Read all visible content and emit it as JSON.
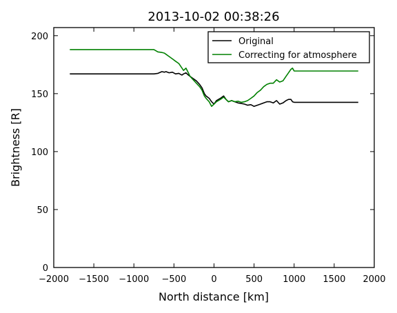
{
  "chart_data": {
    "type": "line",
    "title": "2013-10-02 00:38:26",
    "xlabel": "North distance [km]",
    "ylabel": "Brightness [R]",
    "xlim": [
      -2000,
      2000
    ],
    "ylim": [
      0,
      207
    ],
    "xticks": [
      -2000,
      -1500,
      -1000,
      -500,
      0,
      500,
      1000,
      1500,
      2000
    ],
    "yticks": [
      0,
      50,
      100,
      150,
      200
    ],
    "xtick_labels": [
      "−2000",
      "−1500",
      "−1000",
      "−500",
      "0",
      "500",
      "1000",
      "1500",
      "2000"
    ],
    "ytick_labels": [
      "0",
      "50",
      "100",
      "150",
      "200"
    ],
    "grid": false,
    "legend_position": "top-right",
    "series": [
      {
        "name": "Original",
        "color": "#000000",
        "x": [
          -1800,
          -750,
          -700,
          -650,
          -620,
          -600,
          -560,
          -520,
          -480,
          -440,
          -400,
          -380,
          -350,
          -320,
          -300,
          -260,
          -220,
          -180,
          -150,
          -120,
          -100,
          -60,
          -30,
          0,
          30,
          80,
          120,
          150,
          180,
          220,
          260,
          300,
          340,
          380,
          420,
          460,
          500,
          540,
          580,
          620,
          660,
          700,
          740,
          780,
          820,
          860,
          900,
          930,
          960,
          980,
          1000,
          1100,
          1300,
          1500,
          1800
        ],
        "y": [
          167,
          167,
          167.5,
          169,
          168.5,
          169,
          168,
          168.5,
          167,
          167.5,
          166,
          167,
          168,
          166,
          165,
          163,
          161,
          158,
          155,
          150,
          148,
          146,
          143,
          141,
          144,
          146,
          148,
          145,
          143,
          144,
          143,
          142,
          141.5,
          141,
          140,
          140.5,
          139,
          140,
          141,
          142,
          143,
          143,
          142,
          144,
          141,
          142,
          144,
          145,
          145,
          143,
          142.5,
          142.5,
          142.5,
          142.5,
          142.5
        ]
      },
      {
        "name": "Correcting for atmosphere",
        "color": "#008000",
        "x": [
          -1800,
          -750,
          -700,
          -650,
          -620,
          -600,
          -560,
          -520,
          -480,
          -440,
          -400,
          -380,
          -350,
          -320,
          -300,
          -260,
          -220,
          -180,
          -150,
          -120,
          -100,
          -60,
          -30,
          0,
          30,
          80,
          120,
          150,
          180,
          220,
          260,
          300,
          340,
          380,
          420,
          460,
          500,
          540,
          580,
          620,
          660,
          700,
          740,
          780,
          820,
          860,
          900,
          930,
          960,
          980,
          1000,
          1100,
          1300,
          1500,
          1800
        ],
        "y": [
          188,
          188,
          186,
          185.5,
          185,
          184,
          182,
          180,
          178,
          176,
          172,
          170,
          172,
          168,
          165,
          162,
          159,
          156,
          153,
          148,
          146,
          143,
          139,
          141,
          143,
          145,
          147,
          145,
          143,
          144,
          143,
          143.5,
          142.5,
          143,
          144,
          146,
          148,
          151,
          153,
          156,
          158,
          159,
          159,
          162,
          160,
          161,
          165,
          168,
          171,
          172,
          169.5,
          169.5,
          169.5,
          169.5,
          169.5
        ]
      }
    ]
  }
}
